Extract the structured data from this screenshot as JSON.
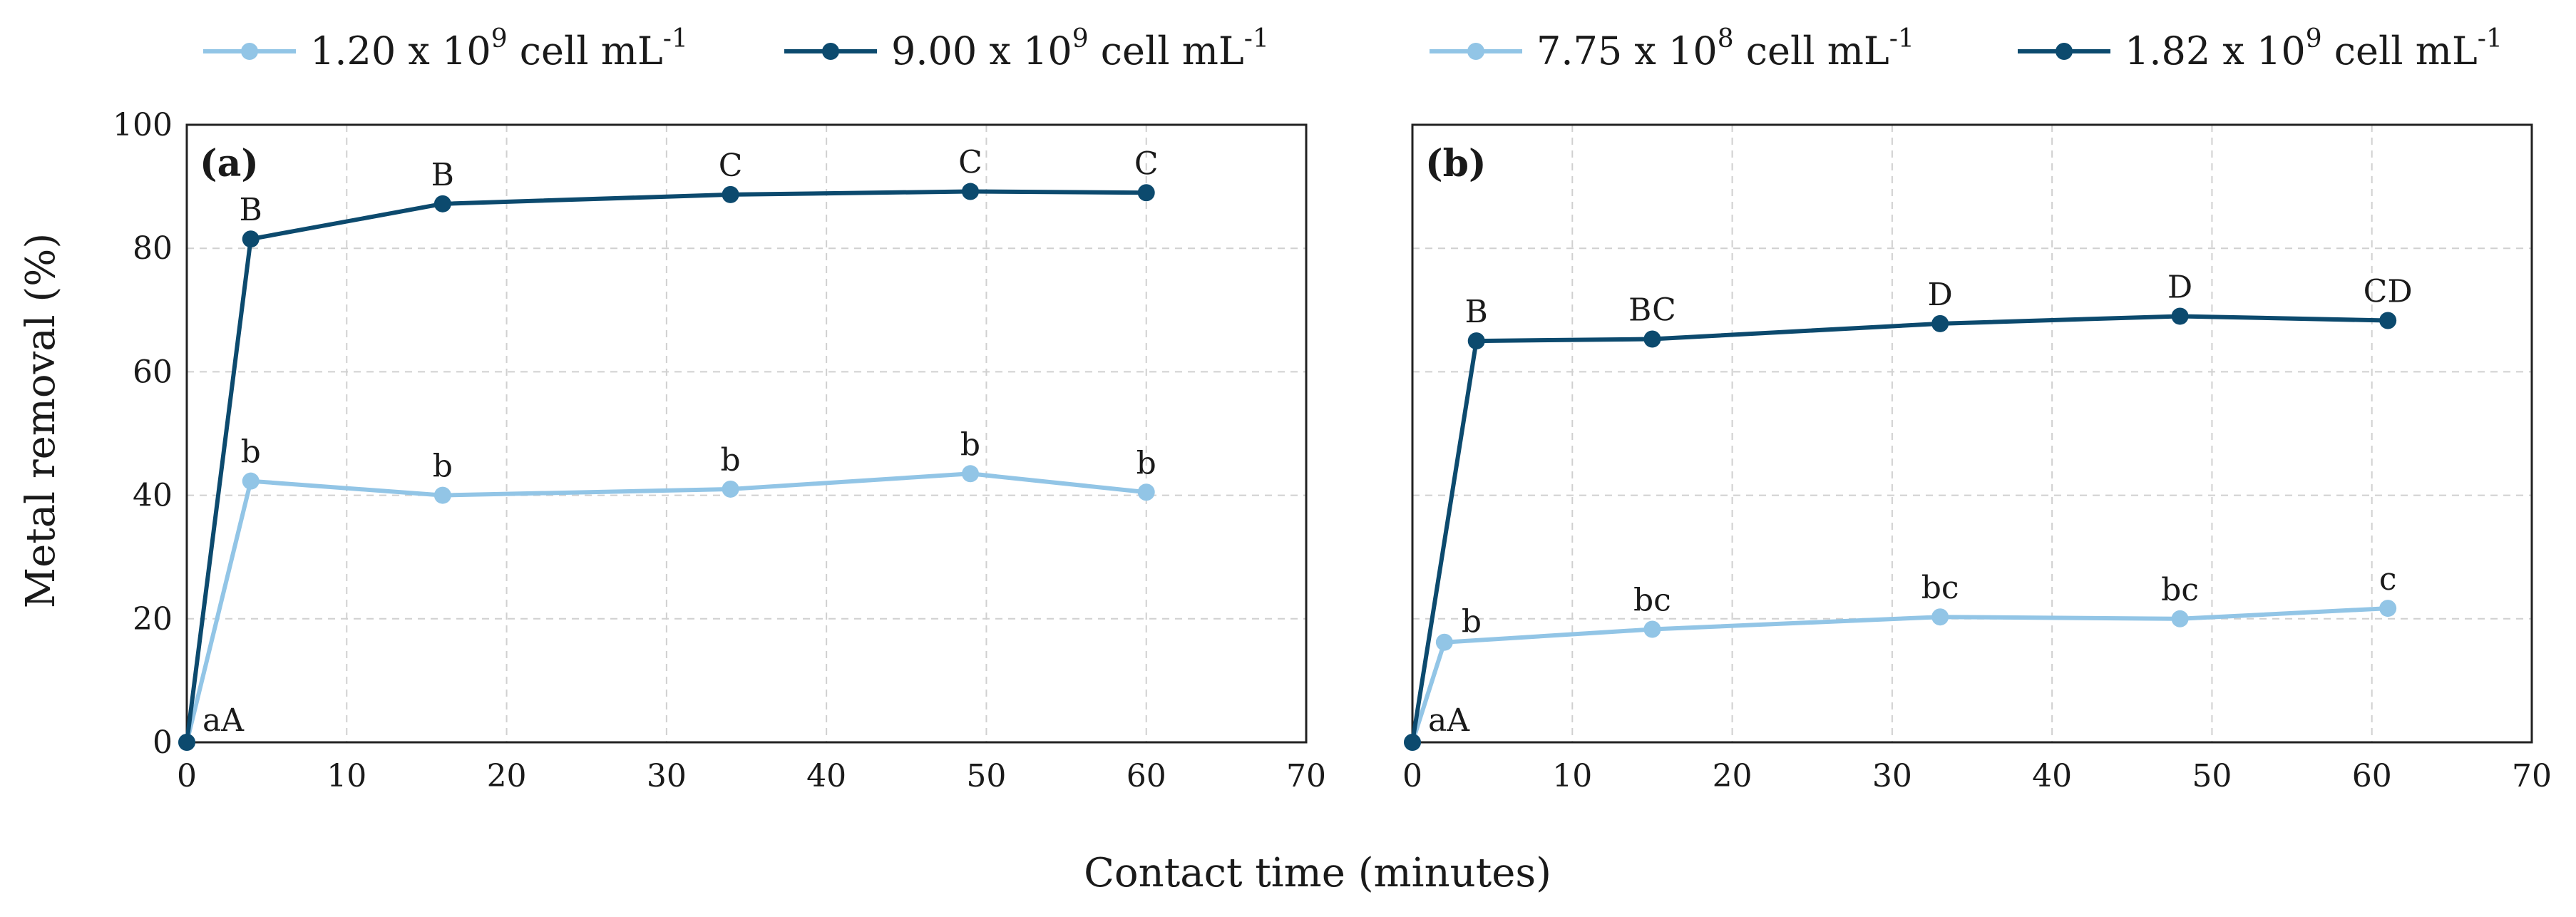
{
  "chart_data": {
    "type": "line",
    "xlabel": "Contact time (minutes)",
    "ylabel": "Metal removal (%)",
    "legend_position": "top",
    "colors": {
      "light": "#92C5E6",
      "dark": "#0C4A6E"
    },
    "panels": [
      {
        "id": "a",
        "panel_label": "(a)",
        "xlim": [
          0,
          70
        ],
        "ylim": [
          0,
          100
        ],
        "x_ticks": [
          "0",
          "10",
          "20",
          "30",
          "40",
          "50",
          "60",
          "70"
        ],
        "y_ticks": [
          "0",
          "20",
          "40",
          "60",
          "80",
          "100"
        ],
        "show_y_ticks": true,
        "series": [
          {
            "name": "1.20 x 10^9 cell mL^-1",
            "legend_base": "1.20 x 10",
            "legend_exp": "9",
            "legend_unit": " cell mL",
            "legend_unit_exp": "-1",
            "color_key": "light",
            "x": [
              0,
              4,
              16,
              34,
              49,
              60
            ],
            "y": [
              0,
              42.3,
              40.0,
              41.0,
              43.5,
              40.5
            ],
            "labels": [
              "",
              "b",
              "b",
              "b",
              "b",
              "b"
            ]
          },
          {
            "name": "9.00 x 10^9 cell mL^-1",
            "legend_base": "9.00 x 10",
            "legend_exp": "9",
            "legend_unit": " cell mL",
            "legend_unit_exp": "-1",
            "color_key": "dark",
            "x": [
              0,
              4,
              16,
              34,
              49,
              60
            ],
            "y": [
              0,
              81.5,
              87.2,
              88.7,
              89.2,
              89.0
            ],
            "labels": [
              "aA",
              "B",
              "B",
              "C",
              "C",
              "C"
            ]
          }
        ]
      },
      {
        "id": "b",
        "panel_label": "(b)",
        "xlim": [
          0,
          70
        ],
        "ylim": [
          0,
          100
        ],
        "x_ticks": [
          "0",
          "10",
          "20",
          "30",
          "40",
          "50",
          "60",
          "70"
        ],
        "y_ticks": [
          "0",
          "20",
          "40",
          "60",
          "80",
          "100"
        ],
        "show_y_ticks": false,
        "series": [
          {
            "name": "7.75 x 10^8 cell mL^-1",
            "legend_base": "7.75 x 10",
            "legend_exp": "8",
            "legend_unit": " cell mL",
            "legend_unit_exp": "-1",
            "color_key": "light",
            "x": [
              0,
              2,
              15,
              33,
              48,
              61
            ],
            "y": [
              0,
              16.2,
              18.3,
              20.3,
              20.0,
              21.7
            ],
            "labels": [
              "",
              "b",
              "bc",
              "bc",
              "bc",
              "c"
            ]
          },
          {
            "name": "1.82 x 10^9 cell mL^-1",
            "legend_base": "1.82 x 10",
            "legend_exp": "9",
            "legend_unit": " cell mL",
            "legend_unit_exp": "-1",
            "color_key": "dark",
            "x": [
              0,
              4,
              15,
              33,
              48,
              61
            ],
            "y": [
              0,
              65.0,
              65.3,
              67.8,
              69.0,
              68.3
            ],
            "labels": [
              "aA",
              "B",
              "BC",
              "D",
              "D",
              "CD"
            ]
          }
        ]
      }
    ]
  }
}
